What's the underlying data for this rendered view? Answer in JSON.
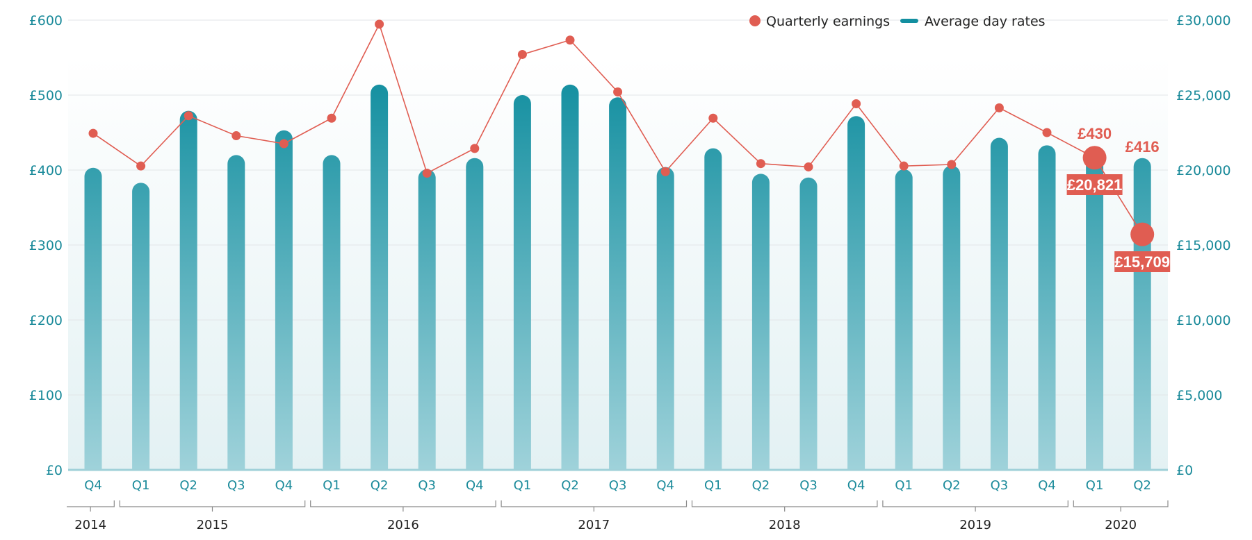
{
  "chart_data": {
    "type": "bar",
    "title": "",
    "categories": [
      "Q4",
      "Q1",
      "Q2",
      "Q3",
      "Q4",
      "Q1",
      "Q2",
      "Q3",
      "Q4",
      "Q1",
      "Q2",
      "Q3",
      "Q4",
      "Q1",
      "Q2",
      "Q3",
      "Q4",
      "Q1",
      "Q2",
      "Q3",
      "Q4",
      "Q1",
      "Q2"
    ],
    "years": [
      {
        "label": "2014",
        "count": 1
      },
      {
        "label": "2015",
        "count": 4
      },
      {
        "label": "2016",
        "count": 4
      },
      {
        "label": "2017",
        "count": 4
      },
      {
        "label": "2018",
        "count": 4
      },
      {
        "label": "2019",
        "count": 4
      },
      {
        "label": "2020",
        "count": 2
      }
    ],
    "series": [
      {
        "name": "Average day rates",
        "type": "bar",
        "axis": "left",
        "color": "#138fa0",
        "values": [
          403,
          383,
          479,
          420,
          453,
          420,
          514,
          401,
          416,
          500,
          514,
          497,
          404,
          429,
          395,
          390,
          472,
          401,
          406,
          443,
          433,
          430,
          416
        ]
      },
      {
        "name": "Quarterly earnings",
        "type": "line",
        "axis": "right",
        "color": "#e05d52",
        "values": [
          22450,
          20270,
          23620,
          22290,
          21760,
          23460,
          29730,
          19790,
          21440,
          27710,
          28670,
          25210,
          19890,
          23460,
          20430,
          20210,
          24420,
          20270,
          20370,
          24150,
          22500,
          20821,
          15709
        ]
      }
    ],
    "left_axis": {
      "ticks": [
        "£0",
        "£100",
        "£200",
        "£300",
        "£400",
        "£500",
        "£600"
      ],
      "ylim": [
        0,
        600
      ]
    },
    "right_axis": {
      "ticks": [
        "£0",
        "£5,000",
        "£10,000",
        "£15,000",
        "£20,000",
        "£25,000",
        "£30,000"
      ],
      "ylim": [
        0,
        30000
      ]
    },
    "annotations": {
      "bar_q1_2020": "£430",
      "bar_q2_2020": "£416",
      "earn_q1_2020": "£20,821",
      "earn_q2_2020": "£15,709"
    },
    "legend": {
      "placement": "top-right",
      "items": [
        "Quarterly earnings",
        "Average day rates"
      ]
    },
    "grid": true
  }
}
